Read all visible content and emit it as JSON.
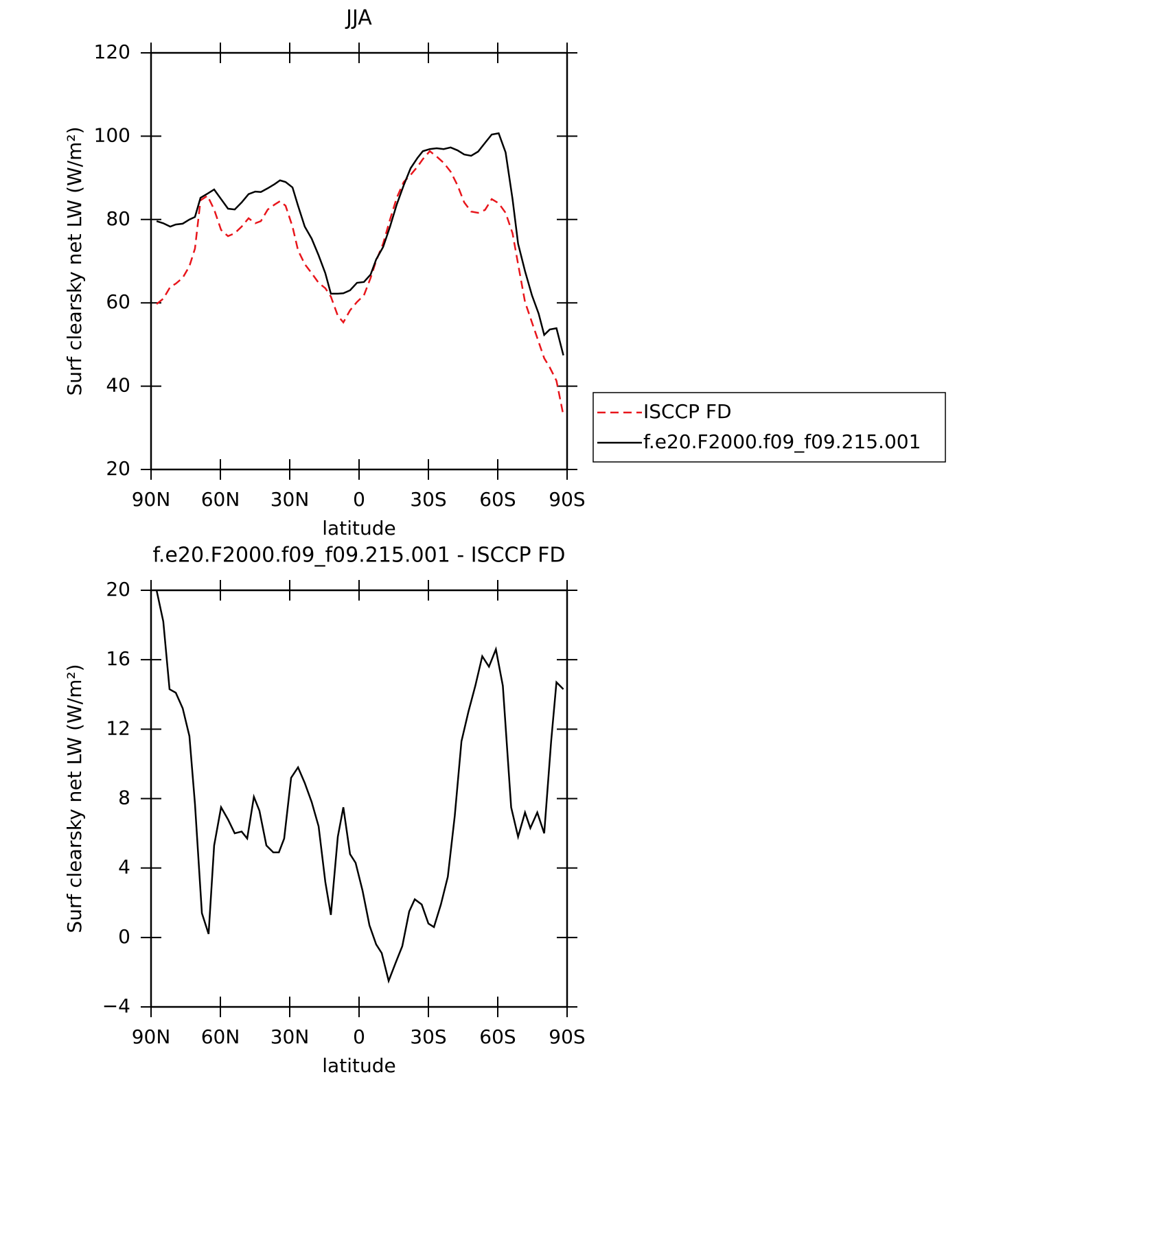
{
  "chart_data": [
    {
      "type": "line",
      "title": "JJA",
      "x_label": "latitude",
      "y_label": "Surf clearsky net LW (W/m²)",
      "x": [
        87.6,
        84.7,
        81.7,
        79.3,
        76.3,
        73.4,
        71.0,
        68.6,
        65.6,
        62.7,
        59.7,
        56.7,
        53.8,
        50.8,
        47.8,
        44.9,
        42.5,
        39.5,
        36.5,
        34.2,
        31.8,
        28.8,
        26.4,
        23.5,
        20.5,
        17.5,
        14.6,
        12.2,
        9.2,
        6.8,
        3.9,
        0.9,
        -2.1,
        -5.0,
        -7.4,
        -10.4,
        -13.4,
        -16.3,
        -19.3,
        -22.3,
        -25.3,
        -27.6,
        -30.6,
        -33.6,
        -36.6,
        -39.6,
        -42.6,
        -45.5,
        -48.5,
        -51.5,
        -54.5,
        -57.4,
        -60.4,
        -63.4,
        -66.4,
        -68.8,
        -71.8,
        -74.8,
        -77.7,
        -80.1,
        -82.5,
        -85.4,
        -88.4
      ],
      "xlim": [
        90,
        -90
      ],
      "xticks": [
        {
          "value": 90,
          "label": "90N"
        },
        {
          "value": 60,
          "label": "60N"
        },
        {
          "value": 30,
          "label": "30N"
        },
        0,
        {
          "value": -30,
          "label": "30S"
        },
        {
          "value": -60,
          "label": "60S"
        },
        {
          "value": -90,
          "label": "90S"
        }
      ],
      "ylim": [
        20,
        120
      ],
      "yticks": [
        20,
        40,
        60,
        80,
        100,
        120
      ],
      "legend": "right",
      "series": [
        {
          "name": "ISCCP FD",
          "color": "#e8151b",
          "dashed": true,
          "values": [
            59.7,
            61.0,
            63.8,
            64.6,
            66.0,
            68.8,
            73.0,
            84.6,
            85.7,
            82.4,
            77.5,
            76.0,
            76.7,
            78.3,
            80.3,
            79.1,
            79.6,
            82.4,
            83.6,
            84.4,
            83.3,
            78.3,
            72.6,
            69.3,
            67.1,
            64.8,
            63.5,
            61.5,
            56.9,
            55.3,
            58.2,
            60.2,
            61.8,
            66.0,
            70.1,
            74.2,
            80.0,
            85.2,
            89.0,
            90.7,
            92.7,
            94.5,
            96.4,
            95.1,
            93.6,
            91.5,
            88.2,
            84.1,
            81.9,
            81.6,
            82.3,
            84.9,
            83.9,
            81.6,
            76.7,
            69.3,
            60.2,
            55.3,
            50.6,
            46.7,
            44.5,
            41.3,
            33.0
          ]
        },
        {
          "name": "f.e20.F2000.f09_f09.215.001",
          "color": "#000000",
          "dashed": false,
          "values": [
            79.6,
            79.1,
            78.3,
            78.8,
            79.0,
            80.0,
            80.6,
            85.2,
            86.2,
            87.2,
            84.9,
            82.6,
            82.4,
            84.1,
            86.1,
            86.7,
            86.6,
            87.5,
            88.5,
            89.4,
            89.0,
            87.7,
            83.3,
            78.3,
            75.4,
            71.4,
            67.1,
            62.2,
            62.2,
            62.3,
            63.0,
            64.8,
            65.0,
            66.8,
            70.4,
            73.4,
            78.3,
            83.6,
            88.2,
            92.3,
            94.8,
            96.4,
            96.9,
            97.1,
            96.9,
            97.3,
            96.6,
            95.6,
            95.3,
            96.3,
            98.4,
            100.4,
            100.7,
            96.1,
            84.9,
            74.2,
            67.6,
            61.8,
            57.4,
            52.3,
            53.6,
            53.9,
            47.4
          ]
        }
      ]
    },
    {
      "type": "line",
      "title": "f.e20.F2000.f09_f09.215.001 - ISCCP FD",
      "x_label": "latitude",
      "y_label": "Surf clearsky net LW (W/m²)",
      "x": [
        87.6,
        84.7,
        82.0,
        79.3,
        76.3,
        73.4,
        71.0,
        68.0,
        65.1,
        62.7,
        59.7,
        56.7,
        53.8,
        50.8,
        48.4,
        45.5,
        43.1,
        40.1,
        37.1,
        34.7,
        32.4,
        29.4,
        26.4,
        23.5,
        20.5,
        17.5,
        14.6,
        12.2,
        9.2,
        6.8,
        3.9,
        1.5,
        -1.5,
        -4.5,
        -7.4,
        -9.8,
        -12.8,
        -15.7,
        -18.7,
        -21.7,
        -24.1,
        -27.1,
        -30.0,
        -32.4,
        -35.4,
        -38.4,
        -41.4,
        -44.3,
        -47.3,
        -50.3,
        -53.3,
        -56.2,
        -59.2,
        -62.2,
        -65.8,
        -68.8,
        -71.8,
        -74.1,
        -77.1,
        -80.1,
        -83.1,
        -85.4,
        -88.4
      ],
      "xlim": [
        90,
        -90
      ],
      "xticks": [
        {
          "value": 90,
          "label": "90N"
        },
        {
          "value": 60,
          "label": "60N"
        },
        {
          "value": 30,
          "label": "30N"
        },
        0,
        {
          "value": -30,
          "label": "30S"
        },
        {
          "value": -60,
          "label": "60S"
        },
        {
          "value": -90,
          "label": "90S"
        }
      ],
      "ylim": [
        -4,
        20
      ],
      "yticks": [
        {
          "value": -4,
          "label": "−4"
        },
        0,
        4,
        8,
        12,
        16,
        20
      ],
      "color": "#000000",
      "values": [
        20.0,
        18.2,
        14.3,
        14.1,
        13.2,
        11.6,
        7.7,
        1.4,
        0.2,
        5.3,
        7.5,
        6.8,
        6.0,
        6.1,
        5.7,
        8.1,
        7.3,
        5.3,
        4.9,
        4.9,
        5.7,
        9.2,
        9.8,
        8.9,
        7.8,
        6.4,
        3.2,
        1.3,
        5.8,
        7.5,
        4.8,
        4.3,
        2.7,
        0.7,
        -0.4,
        -0.9,
        -2.5,
        -1.5,
        -0.5,
        1.5,
        2.2,
        1.9,
        0.8,
        0.6,
        1.9,
        3.5,
        7.0,
        11.3,
        13.0,
        14.5,
        16.2,
        15.6,
        16.6,
        14.5,
        7.5,
        5.8,
        7.2,
        6.3,
        7.2,
        6.0,
        11.3,
        14.7,
        14.3
      ]
    }
  ]
}
